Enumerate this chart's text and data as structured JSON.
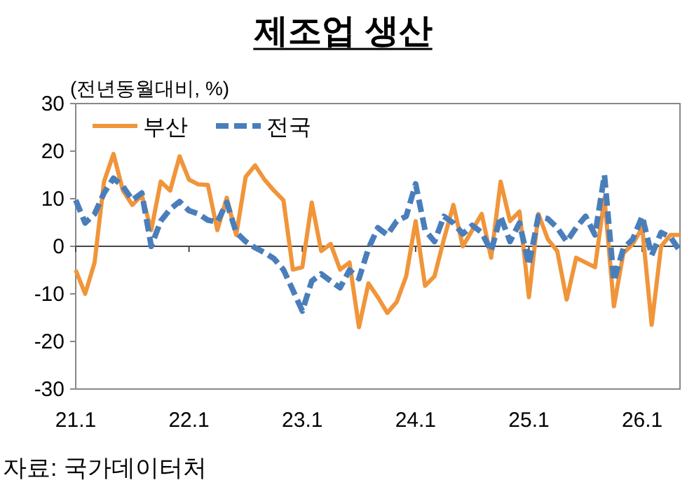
{
  "chart_data": {
    "type": "line",
    "title": "제조업 생산",
    "ylabel": "(전년동월대비, %)",
    "annotations": [
      "자료: 국가데이터처"
    ],
    "categories": [
      "21.1",
      null,
      null,
      null,
      null,
      null,
      null,
      null,
      null,
      null,
      null,
      null,
      "22.1",
      null,
      null,
      null,
      null,
      null,
      null,
      null,
      null,
      null,
      null,
      null,
      "23.1",
      null,
      null,
      null,
      null,
      null,
      null,
      null,
      null,
      null,
      null,
      null,
      "24.1",
      null,
      null,
      null,
      null,
      null,
      null,
      null,
      null,
      null,
      null,
      null,
      "25.1",
      null,
      null,
      null,
      null,
      null,
      null,
      null,
      null,
      null,
      null,
      null,
      "26.1",
      null,
      null,
      null,
      null
    ],
    "series": [
      {
        "name": "부산",
        "color": "#f0953a",
        "line_style": "solid",
        "values": [
          -5,
          -10,
          -3.4,
          13.6,
          19.4,
          11.7,
          8.7,
          10.7,
          3.4,
          13.6,
          11.7,
          18.9,
          14,
          13,
          12.9,
          3.4,
          10.2,
          2.4,
          14.6,
          17,
          14,
          11.7,
          9.7,
          -4.9,
          -4.4,
          9.2,
          -1,
          0.5,
          -4.9,
          -3.4,
          -17,
          -7.8,
          -10.7,
          -14,
          -11.7,
          -6.3,
          5.3,
          -8.3,
          -6.3,
          1.5,
          8.7,
          0,
          3.4,
          6.8,
          -2.4,
          13.6,
          5.3,
          7.3,
          -10.7,
          6.8,
          1.5,
          -1,
          -11.2,
          -2.4,
          -3.4,
          -4.4,
          10.2,
          -12.6,
          -1.5,
          0.5,
          3.9,
          -16.5,
          0,
          2.4,
          2.4
        ]
      },
      {
        "name": "전국",
        "color": "#4a7ebb",
        "line_style": "dashed",
        "values": [
          9.7,
          4.9,
          6.8,
          11.2,
          14.3,
          12.6,
          9.7,
          11.2,
          0,
          5.3,
          7.8,
          9.4,
          7.5,
          6.8,
          5.5,
          5.1,
          9.2,
          2.9,
          1,
          -0.3,
          -1.3,
          -2.6,
          -4.9,
          -9.2,
          -13.6,
          -7.3,
          -5.8,
          -7.3,
          -8.7,
          -5,
          -6.8,
          -0.5,
          3.9,
          2.4,
          5.3,
          6.3,
          13.1,
          3.4,
          1,
          6.3,
          4.9,
          2.6,
          4.4,
          2.9,
          -1,
          6.3,
          1,
          4.9,
          -3.9,
          6.3,
          5.8,
          3.9,
          1,
          3.9,
          6.3,
          2.4,
          15,
          -7.3,
          -0.5,
          1.5,
          6.3,
          -1.9,
          2.9,
          1.9,
          -1
        ]
      }
    ],
    "ylim": [
      -30,
      30
    ],
    "yticks": [
      -30,
      -20,
      -10,
      0,
      10,
      20,
      30
    ],
    "legend": "top left"
  }
}
